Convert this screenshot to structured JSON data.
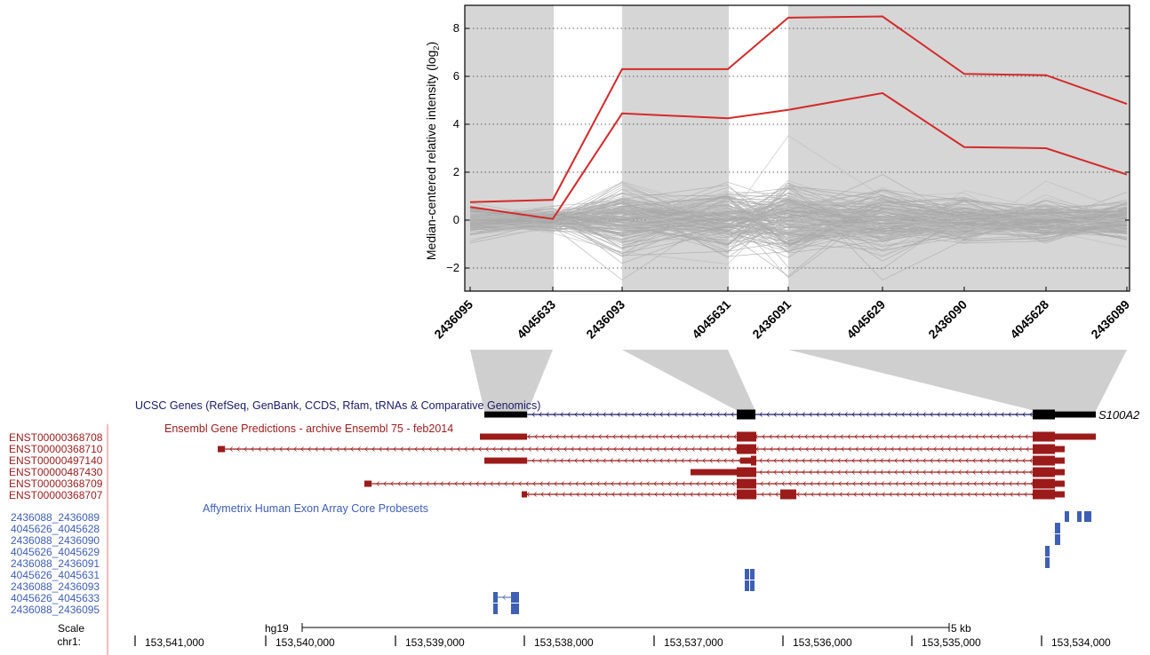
{
  "chart_data": {
    "type": "line",
    "ylabel": "Median-centered relative intensity (log",
    "ylabel_sub": "2",
    "ylabel_close": ")",
    "ylim": [
      -3,
      9
    ],
    "yticks": [
      -2,
      0,
      2,
      4,
      6,
      8
    ],
    "grid": "dotted horizontal",
    "categories": [
      "2436095",
      "4045633",
      "2436093",
      "4045631",
      "2436091",
      "4045629",
      "2436090",
      "4045628",
      "2436089"
    ],
    "shaded_regions": [
      [
        0,
        1
      ],
      [
        2,
        3
      ],
      [
        4,
        8
      ]
    ],
    "highlight_color": "#d42a2a",
    "background_color": "#a8a8a8",
    "series": [
      {
        "values": [
          0.75,
          0.85,
          6.3,
          6.3,
          8.45,
          8.5,
          6.1,
          6.05,
          4.85
        ]
      },
      {
        "values": [
          0.55,
          0.05,
          4.45,
          4.25,
          4.6,
          5.3,
          3.05,
          3.0,
          1.9
        ]
      }
    ]
  },
  "tracks": {
    "ucsc_title": "UCSC Genes (RefSeq, GenBank, CCDS, Rfam, tRNAs & Comparative Genomics)",
    "gene_label": "S100A2",
    "ensembl_title": "Ensembl Gene Predictions - archive Ensembl 75 - feb2014",
    "affy_title": "Affymetrix Human Exon Array Core Probesets",
    "colors": {
      "ucsc": "#1a1a66",
      "ensembl": "#9b1b1b",
      "affy": "#3f5fb5"
    }
  },
  "ensembl_transcripts": [
    "ENST00000368708",
    "ENST00000368710",
    "ENST00000497140",
    "ENST00000487430",
    "ENST00000368709",
    "ENST00000368707"
  ],
  "probesets": [
    "2436088_2436089",
    "4045626_4045628",
    "2436088_2436090",
    "4045626_4045629",
    "2436088_2436091",
    "4045626_4045631",
    "2436088_2436093",
    "4045626_4045633",
    "2436088_2436095"
  ],
  "ruler": {
    "scale_label": "Scale",
    "chr_label": "chr1:",
    "assembly": "hg19",
    "scale_bar": "5 kb",
    "positions": [
      "153,541,000",
      "153,540,000",
      "153,539,000",
      "153,538,000",
      "153,537,000",
      "153,536,000",
      "153,535,000",
      "153,534,000"
    ]
  }
}
